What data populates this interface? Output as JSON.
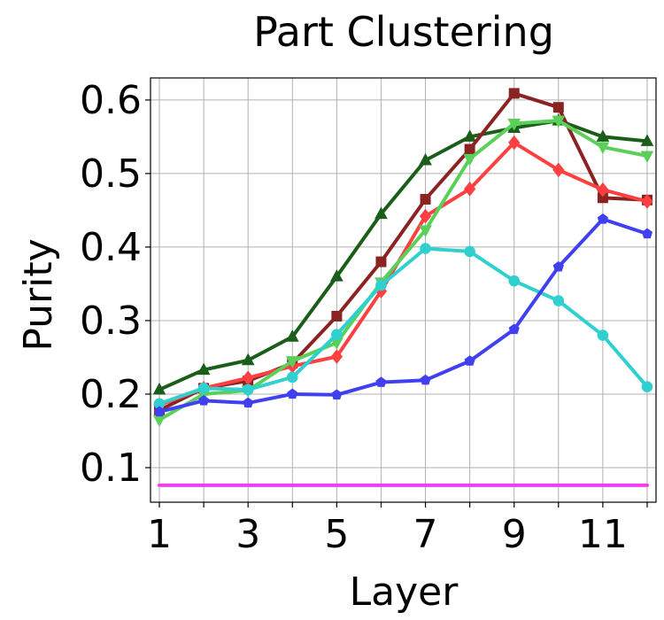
{
  "chart_data": {
    "type": "line",
    "title": "Part Clustering",
    "xlabel": "Layer",
    "ylabel": "Purity",
    "x": [
      1,
      2,
      3,
      4,
      5,
      6,
      7,
      8,
      9,
      10,
      11,
      12
    ],
    "xlim": [
      0.8,
      12.2
    ],
    "ylim": [
      0.053,
      0.63
    ],
    "xticks": [
      1,
      3,
      5,
      7,
      9,
      11
    ],
    "yticks": [
      0.1,
      0.2,
      0.3,
      0.4,
      0.5,
      0.6
    ],
    "ytick_labels": [
      "0.1",
      "0.2",
      "0.3",
      "0.4",
      "0.5",
      "0.6"
    ],
    "grid": true,
    "series": [
      {
        "color": "#1a5e1a",
        "marker": "triangle-up",
        "values": [
          0.206,
          0.233,
          0.246,
          0.278,
          0.36,
          0.445,
          0.518,
          0.55,
          0.562,
          0.572,
          0.55,
          0.544
        ]
      },
      {
        "color": "#8b2323",
        "marker": "square",
        "values": [
          0.178,
          0.208,
          0.218,
          0.242,
          0.306,
          0.38,
          0.465,
          0.533,
          0.609,
          0.59,
          0.467,
          0.464
        ]
      },
      {
        "color": "#ff4040",
        "marker": "diamond",
        "values": [
          0.185,
          0.208,
          0.222,
          0.238,
          0.251,
          0.34,
          0.442,
          0.479,
          0.542,
          0.505,
          0.478,
          0.462
        ]
      },
      {
        "color": "#5ad05a",
        "marker": "triangle-down",
        "values": [
          0.165,
          0.2,
          0.205,
          0.245,
          0.27,
          0.352,
          0.423,
          0.52,
          0.568,
          0.572,
          0.536,
          0.524
        ]
      },
      {
        "color": "#30d0d0",
        "marker": "circle",
        "values": [
          0.187,
          0.208,
          0.206,
          0.223,
          0.281,
          0.348,
          0.398,
          0.394,
          0.354,
          0.327,
          0.28,
          0.21
        ]
      },
      {
        "color": "#4040f0",
        "marker": "pentagon",
        "values": [
          0.176,
          0.191,
          0.188,
          0.2,
          0.199,
          0.216,
          0.219,
          0.245,
          0.288,
          0.373,
          0.438,
          0.418
        ]
      },
      {
        "color": "#ee40ee",
        "marker": "none",
        "values": [
          0.076,
          0.076,
          0.076,
          0.076,
          0.076,
          0.076,
          0.076,
          0.076,
          0.076,
          0.076,
          0.076,
          0.076
        ]
      }
    ]
  }
}
